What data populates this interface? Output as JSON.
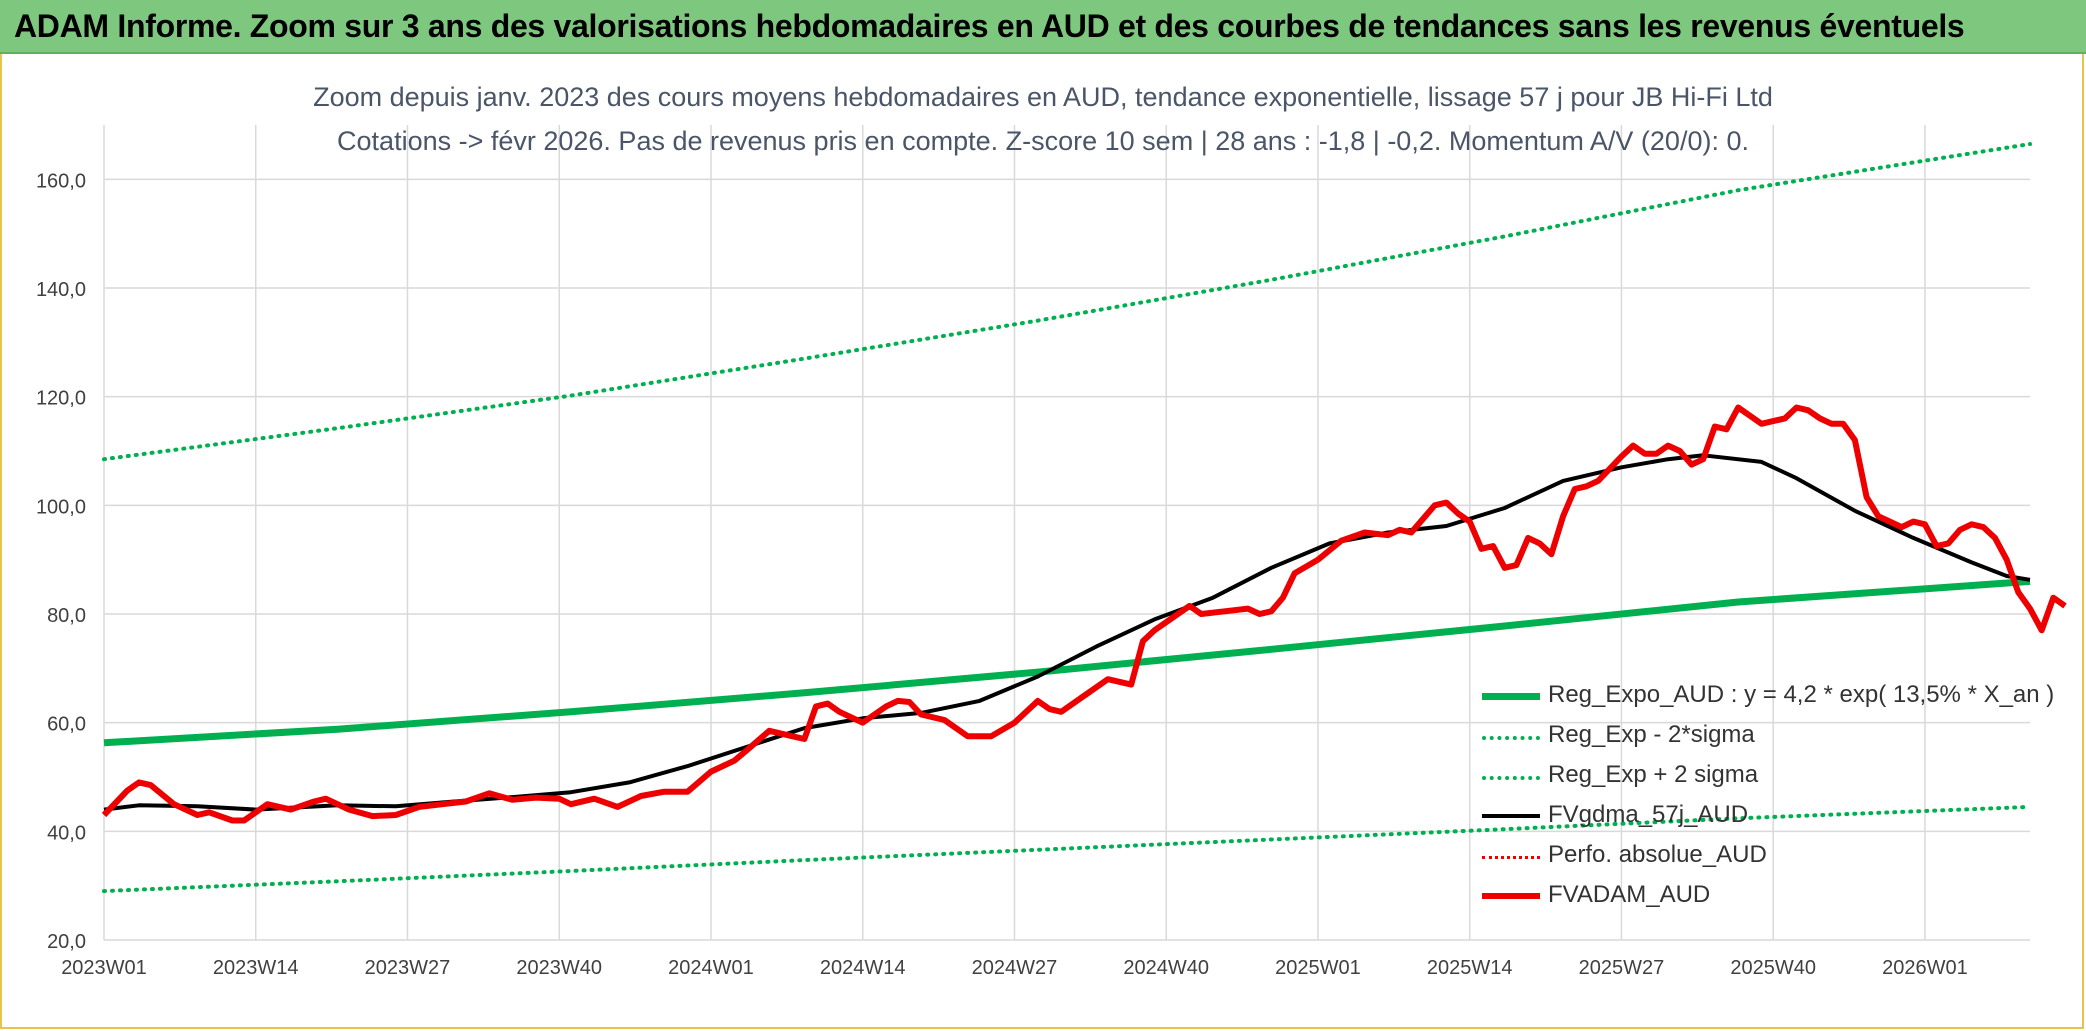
{
  "header": {
    "title": "ADAM Informe. Zoom sur 3 ans des valorisations hebdomadaires en AUD et des courbes de tendances sans les revenus éventuels"
  },
  "colors": {
    "banner": "#7dc87e",
    "trend": "#00b050",
    "red": "#ee0000",
    "black": "#000000",
    "grid": "#d9d9d9"
  },
  "chart_data": {
    "type": "line",
    "title_line1": "Zoom depuis janv. 2023 des cours moyens hebdomadaires en AUD, tendance exponentielle, lissage 57 j pour JB Hi-Fi Ltd",
    "title_line2": "Cotations -> févr 2026. Pas de revenus pris en compte. Z-score 10 sem | 28 ans : -1,8 | -0,2. Momentum A/V (20/0): 0.",
    "xlabel": "",
    "ylabel": "",
    "ylim": [
      20,
      170
    ],
    "yticks": [
      "20,0",
      "40,0",
      "60,0",
      "80,0",
      "100,0",
      "120,0",
      "140,0",
      "160,0"
    ],
    "ytick_values": [
      20,
      40,
      60,
      80,
      100,
      120,
      140,
      160
    ],
    "x_range_weeks": [
      0,
      165
    ],
    "xticks": [
      {
        "label": "2023W01",
        "week": 0
      },
      {
        "label": "2023W14",
        "week": 13
      },
      {
        "label": "2023W27",
        "week": 26
      },
      {
        "label": "2023W40",
        "week": 39
      },
      {
        "label": "2024W01",
        "week": 52
      },
      {
        "label": "2024W14",
        "week": 65
      },
      {
        "label": "2024W27",
        "week": 78
      },
      {
        "label": "2024W40",
        "week": 91
      },
      {
        "label": "2025W01",
        "week": 104
      },
      {
        "label": "2025W14",
        "week": 117
      },
      {
        "label": "2025W27",
        "week": 130
      },
      {
        "label": "2025W40",
        "week": 143
      },
      {
        "label": "2026W01",
        "week": 156
      }
    ],
    "grid": true,
    "legend_position": "bottom-right",
    "series": [
      {
        "name": "Reg_Expo_AUD : y = 4,2 * exp( 13,5% *  X_an )",
        "style": "solid-thick",
        "color": "#00b050",
        "points": [
          [
            0,
            56.3
          ],
          [
            20,
            58.8
          ],
          [
            40,
            62.0
          ],
          [
            60,
            65.5
          ],
          [
            80,
            69.3
          ],
          [
            100,
            73.5
          ],
          [
            120,
            77.8
          ],
          [
            140,
            82.2
          ],
          [
            165,
            86.0
          ]
        ]
      },
      {
        "name": "Reg_Exp - 2*sigma",
        "style": "dotted",
        "color": "#00b050",
        "points": [
          [
            0,
            29.0
          ],
          [
            20,
            30.8
          ],
          [
            40,
            32.7
          ],
          [
            60,
            34.7
          ],
          [
            80,
            36.6
          ],
          [
            100,
            38.5
          ],
          [
            120,
            40.4
          ],
          [
            140,
            42.4
          ],
          [
            165,
            44.5
          ]
        ]
      },
      {
        "name": "Reg_Exp + 2 sigma",
        "style": "dotted",
        "color": "#00b050",
        "points": [
          [
            0,
            108.5
          ],
          [
            20,
            114.2
          ],
          [
            40,
            120.2
          ],
          [
            60,
            127.0
          ],
          [
            80,
            134.0
          ],
          [
            100,
            141.5
          ],
          [
            120,
            149.5
          ],
          [
            140,
            158.0
          ],
          [
            165,
            166.5
          ]
        ]
      },
      {
        "name": "FVgdma_57j_AUD",
        "style": "solid",
        "color": "#000000",
        "points": [
          [
            0,
            44.0
          ],
          [
            3,
            44.8
          ],
          [
            8,
            44.6
          ],
          [
            13,
            44.0
          ],
          [
            20,
            44.8
          ],
          [
            25,
            44.6
          ],
          [
            30,
            45.5
          ],
          [
            35,
            46.3
          ],
          [
            40,
            47.2
          ],
          [
            45,
            49.0
          ],
          [
            50,
            52.0
          ],
          [
            55,
            55.5
          ],
          [
            60,
            59.0
          ],
          [
            65,
            60.8
          ],
          [
            70,
            61.8
          ],
          [
            75,
            64.0
          ],
          [
            80,
            68.5
          ],
          [
            85,
            74.0
          ],
          [
            90,
            79.0
          ],
          [
            95,
            83.0
          ],
          [
            100,
            88.5
          ],
          [
            105,
            93.0
          ],
          [
            110,
            95.0
          ],
          [
            115,
            96.2
          ],
          [
            120,
            99.5
          ],
          [
            125,
            104.5
          ],
          [
            130,
            107.0
          ],
          [
            134,
            108.5
          ],
          [
            137,
            109.2
          ],
          [
            142,
            108.0
          ],
          [
            145,
            105.0
          ],
          [
            150,
            99.0
          ],
          [
            155,
            94.0
          ],
          [
            160,
            89.5
          ],
          [
            163,
            87.0
          ],
          [
            165,
            86.3
          ]
        ]
      },
      {
        "name": "Perfo. absolue_AUD",
        "style": "dotted-thin",
        "color": "#ee0000",
        "points": []
      },
      {
        "name": "FVADAM_AUD",
        "style": "solid-thick",
        "color": "#ee0000",
        "points": [
          [
            0,
            43.0
          ],
          [
            2,
            47.5
          ],
          [
            3,
            49.0
          ],
          [
            4,
            48.5
          ],
          [
            6,
            45.0
          ],
          [
            8,
            43.0
          ],
          [
            9,
            43.5
          ],
          [
            11,
            42.0
          ],
          [
            12,
            42.0
          ],
          [
            14,
            45.0
          ],
          [
            16,
            44.0
          ],
          [
            18,
            45.5
          ],
          [
            19,
            46.0
          ],
          [
            21,
            44.0
          ],
          [
            23,
            42.8
          ],
          [
            25,
            43.0
          ],
          [
            27,
            44.5
          ],
          [
            29,
            45.0
          ],
          [
            31,
            45.5
          ],
          [
            33,
            47.0
          ],
          [
            35,
            45.8
          ],
          [
            37,
            46.2
          ],
          [
            39,
            46.0
          ],
          [
            40,
            45.0
          ],
          [
            42,
            46.0
          ],
          [
            44,
            44.5
          ],
          [
            46,
            46.5
          ],
          [
            48,
            47.3
          ],
          [
            50,
            47.3
          ],
          [
            52,
            51.0
          ],
          [
            54,
            53.0
          ],
          [
            55,
            54.8
          ],
          [
            57,
            58.5
          ],
          [
            59,
            57.5
          ],
          [
            60,
            57.0
          ],
          [
            61,
            63.0
          ],
          [
            62,
            63.5
          ],
          [
            63,
            62.0
          ],
          [
            65,
            60.0
          ],
          [
            67,
            63.0
          ],
          [
            68,
            64.0
          ],
          [
            69,
            63.8
          ],
          [
            70,
            61.5
          ],
          [
            72,
            60.5
          ],
          [
            74,
            57.5
          ],
          [
            76,
            57.5
          ],
          [
            78,
            60.0
          ],
          [
            80,
            64.0
          ],
          [
            81,
            62.5
          ],
          [
            82,
            62.0
          ],
          [
            84,
            65.0
          ],
          [
            86,
            68.0
          ],
          [
            88,
            67.0
          ],
          [
            89,
            75.0
          ],
          [
            90,
            77.0
          ],
          [
            92,
            80.0
          ],
          [
            93,
            81.5
          ],
          [
            94,
            80.0
          ],
          [
            96,
            80.5
          ],
          [
            98,
            81.0
          ],
          [
            99,
            80.0
          ],
          [
            100,
            80.5
          ],
          [
            101,
            83.0
          ],
          [
            102,
            87.5
          ],
          [
            104,
            90.0
          ],
          [
            106,
            93.5
          ],
          [
            108,
            95.0
          ],
          [
            110,
            94.5
          ],
          [
            111,
            95.5
          ],
          [
            112,
            95.0
          ],
          [
            114,
            100.0
          ],
          [
            115,
            100.5
          ],
          [
            116,
            98.5
          ],
          [
            117,
            97.0
          ],
          [
            118,
            92.0
          ],
          [
            119,
            92.5
          ],
          [
            120,
            88.5
          ],
          [
            121,
            89.0
          ],
          [
            122,
            94.0
          ],
          [
            123,
            93.0
          ],
          [
            124,
            91.0
          ],
          [
            125,
            98.0
          ],
          [
            126,
            103.0
          ],
          [
            127,
            103.5
          ],
          [
            128,
            104.5
          ],
          [
            130,
            109.0
          ],
          [
            131,
            111.0
          ],
          [
            132,
            109.5
          ],
          [
            133,
            109.5
          ],
          [
            134,
            111.0
          ],
          [
            135,
            110.0
          ],
          [
            136,
            107.5
          ],
          [
            137,
            108.5
          ],
          [
            138,
            114.5
          ],
          [
            139,
            114.0
          ],
          [
            140,
            118.0
          ],
          [
            141,
            116.5
          ],
          [
            142,
            115.0
          ],
          [
            143,
            115.5
          ],
          [
            144,
            116.0
          ],
          [
            145,
            118.0
          ],
          [
            146,
            117.5
          ],
          [
            147,
            116.0
          ],
          [
            148,
            115.0
          ],
          [
            149,
            115.0
          ],
          [
            150,
            112.0
          ],
          [
            151,
            101.5
          ],
          [
            152,
            98.0
          ],
          [
            153,
            97.0
          ],
          [
            154,
            96.0
          ],
          [
            155,
            97.0
          ],
          [
            156,
            96.5
          ],
          [
            157,
            92.5
          ],
          [
            158,
            93.0
          ],
          [
            159,
            95.5
          ],
          [
            160,
            96.5
          ],
          [
            161,
            96.0
          ],
          [
            162,
            94.0
          ],
          [
            163,
            90.0
          ],
          [
            164,
            84.0
          ],
          [
            165,
            81.0
          ],
          [
            166,
            77.0
          ],
          [
            167,
            83.0
          ],
          [
            168,
            81.5
          ]
        ]
      }
    ]
  },
  "legend": {
    "items": [
      {
        "label": "Reg_Expo_AUD : y = 4,2 * exp( 13,5% *  X_an )"
      },
      {
        "label": "Reg_Exp - 2*sigma"
      },
      {
        "label": "Reg_Exp + 2 sigma"
      },
      {
        "label": "FVgdma_57j_AUD"
      },
      {
        "label": "Perfo. absolue_AUD"
      },
      {
        "label": "FVADAM_AUD"
      }
    ]
  }
}
